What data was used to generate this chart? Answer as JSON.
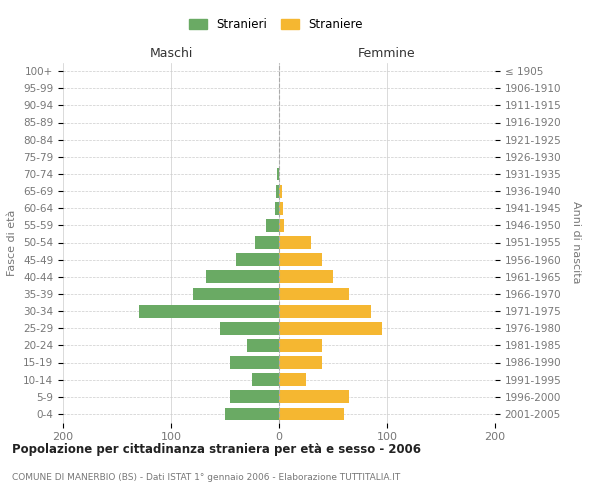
{
  "age_groups": [
    "0-4",
    "5-9",
    "10-14",
    "15-19",
    "20-24",
    "25-29",
    "30-34",
    "35-39",
    "40-44",
    "45-49",
    "50-54",
    "55-59",
    "60-64",
    "65-69",
    "70-74",
    "75-79",
    "80-84",
    "85-89",
    "90-94",
    "95-99",
    "100+"
  ],
  "birth_years": [
    "2001-2005",
    "1996-2000",
    "1991-1995",
    "1986-1990",
    "1981-1985",
    "1976-1980",
    "1971-1975",
    "1966-1970",
    "1961-1965",
    "1956-1960",
    "1951-1955",
    "1946-1950",
    "1941-1945",
    "1936-1940",
    "1931-1935",
    "1926-1930",
    "1921-1925",
    "1916-1920",
    "1911-1915",
    "1906-1910",
    "≤ 1905"
  ],
  "males": [
    50,
    45,
    25,
    45,
    30,
    55,
    130,
    80,
    68,
    40,
    22,
    12,
    4,
    3,
    2,
    0,
    0,
    0,
    0,
    0,
    0
  ],
  "females": [
    60,
    65,
    25,
    40,
    40,
    95,
    85,
    65,
    50,
    40,
    30,
    5,
    4,
    3,
    0,
    0,
    0,
    0,
    0,
    0,
    0
  ],
  "male_color": "#6aaa64",
  "female_color": "#f5b731",
  "grid_color": "#cccccc",
  "text_color": "#777777",
  "bg_color": "#ffffff",
  "title": "Popolazione per cittadinanza straniera per età e sesso - 2006",
  "subtitle": "COMUNE DI MANERBIO (BS) - Dati ISTAT 1° gennaio 2006 - Elaborazione TUTTITALIA.IT",
  "xlabel_left": "Maschi",
  "xlabel_right": "Femmine",
  "ylabel_left": "Fasce di età",
  "ylabel_right": "Anni di nascita",
  "legend_male": "Stranieri",
  "legend_female": "Straniere",
  "xlim": 200,
  "xticks": [
    -200,
    -100,
    0,
    100,
    200
  ],
  "xticklabels": [
    "200",
    "100",
    "0",
    "100",
    "200"
  ]
}
